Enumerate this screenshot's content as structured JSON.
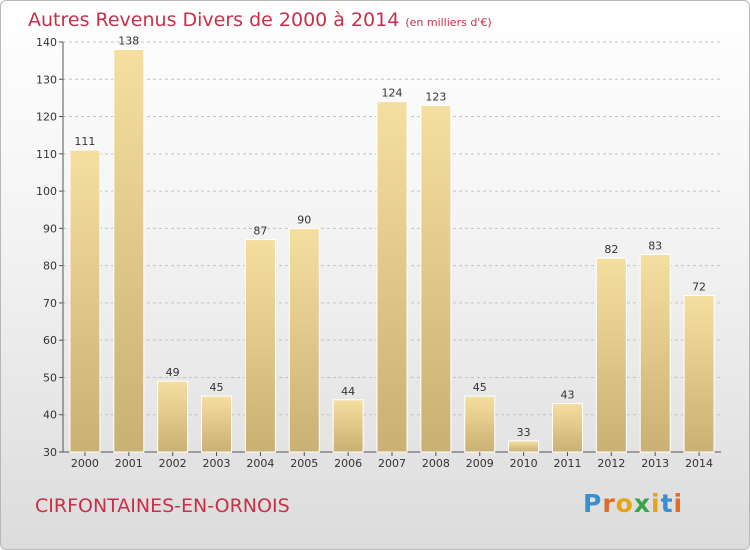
{
  "chart_data": {
    "type": "bar",
    "title": "Autres Revenus Divers de 2000 à 2014",
    "unit": "(en milliers d'€)",
    "categories": [
      "2000",
      "2001",
      "2002",
      "2003",
      "2004",
      "2005",
      "2006",
      "2007",
      "2008",
      "2009",
      "2010",
      "2011",
      "2012",
      "2013",
      "2014"
    ],
    "values": [
      111,
      138,
      49,
      45,
      87,
      90,
      44,
      124,
      123,
      45,
      33,
      43,
      82,
      83,
      72
    ],
    "ylim": [
      30,
      140
    ],
    "yticks": [
      30,
      40,
      50,
      60,
      70,
      80,
      90,
      100,
      110,
      120,
      130,
      140
    ],
    "grid": true,
    "xlabel": "",
    "ylabel": ""
  },
  "footer": {
    "commune": "CIRFONTAINES-EN-ORNOIS",
    "logo": "Proxiti"
  },
  "colors": {
    "title": "#c8304a",
    "bar_light": "#f5dfa0",
    "bar_dark": "#c9b073",
    "logo_letters": [
      "#3a8fd0",
      "#e26b2a",
      "#e8a317",
      "#3aa54a",
      "#e8a317",
      "#3a8fd0",
      "#e26b2a"
    ]
  }
}
